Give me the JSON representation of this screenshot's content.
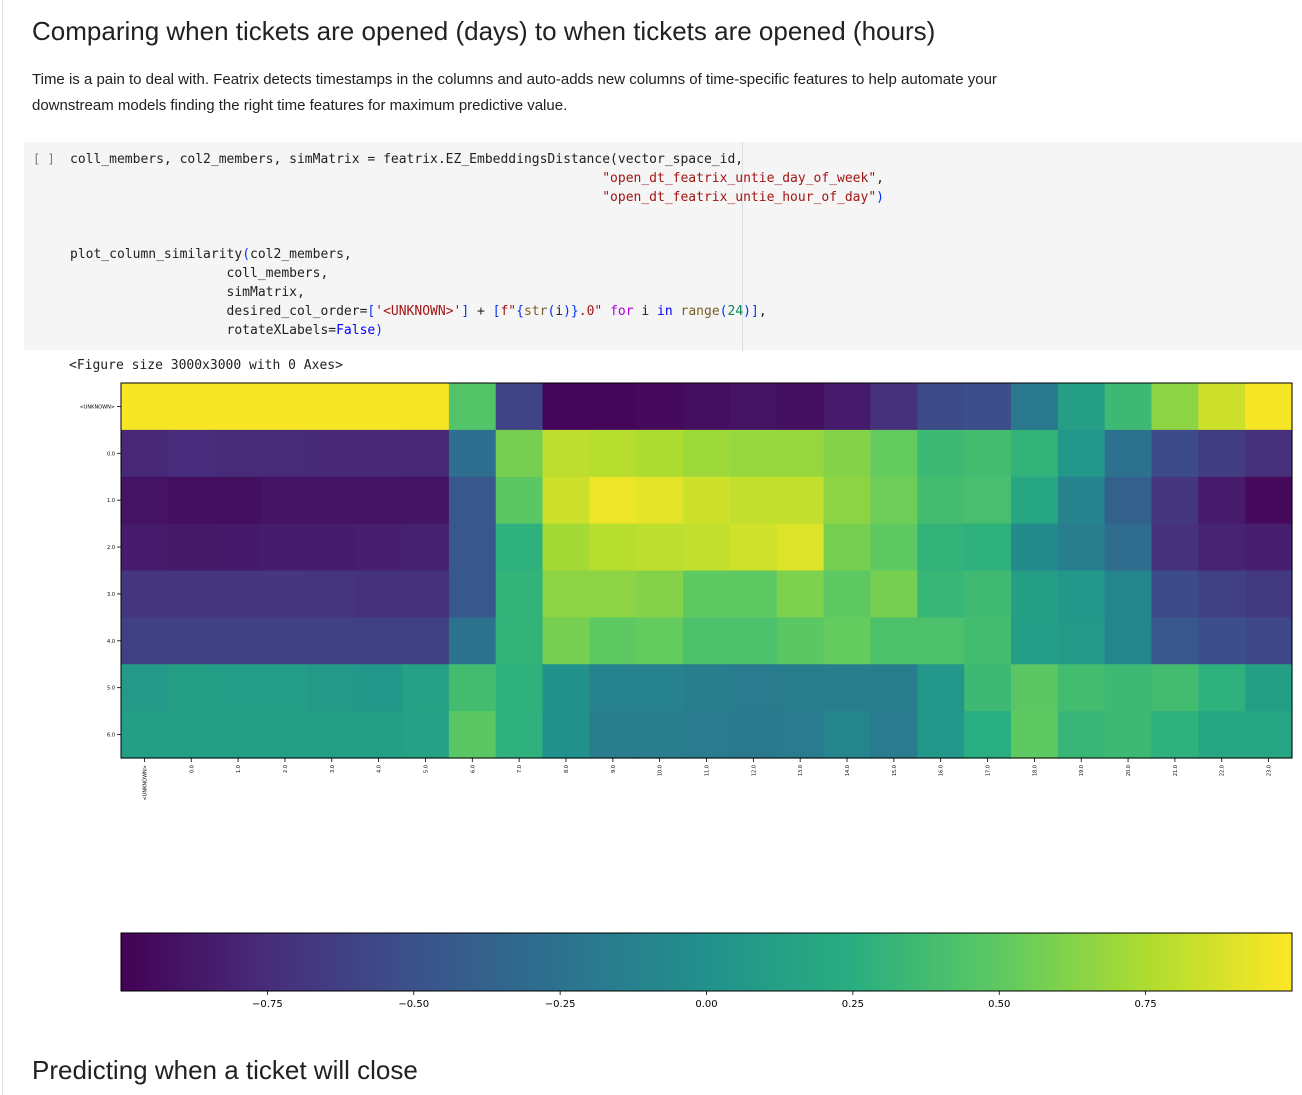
{
  "section1": {
    "title": "Comparing when tickets are opened (days) to when tickets are opened (hours)",
    "description": "Time is a pain to deal with. Featrix detects timestamps in the columns and auto-adds new columns of time-specific features to help automate your downstream models finding the right time features for maximum predictive value."
  },
  "cell": {
    "run_label": "[ ]",
    "output_text": "<Figure size 3000x3000 with 0 Axes>"
  },
  "chart_data": {
    "type": "heatmap",
    "colormap": "viridis",
    "x_categories": [
      "<UNKNOWN>",
      "0.0",
      "1.0",
      "2.0",
      "3.0",
      "4.0",
      "5.0",
      "6.0",
      "7.0",
      "8.0",
      "9.0",
      "10.0",
      "11.0",
      "12.0",
      "13.0",
      "14.0",
      "15.0",
      "16.0",
      "17.0",
      "18.0",
      "19.0",
      "20.0",
      "21.0",
      "22.0",
      "23.0"
    ],
    "y_categories": [
      "<UNKNOWN>",
      "0.0",
      "1.0",
      "2.0",
      "3.0",
      "4.0",
      "5.0",
      "6.0"
    ],
    "values": [
      [
        0.98,
        0.98,
        0.98,
        0.98,
        0.98,
        0.98,
        0.98,
        0.45,
        -0.6,
        -0.97,
        -0.97,
        -0.95,
        -0.92,
        -0.9,
        -0.92,
        -0.85,
        -0.72,
        -0.55,
        -0.52,
        -0.2,
        0.12,
        0.35,
        0.65,
        0.85,
        0.98
      ],
      [
        -0.78,
        -0.75,
        -0.76,
        -0.76,
        -0.77,
        -0.77,
        -0.78,
        -0.28,
        0.58,
        0.8,
        0.78,
        0.75,
        0.7,
        0.68,
        0.68,
        0.62,
        0.52,
        0.35,
        0.38,
        0.3,
        0.05,
        -0.25,
        -0.55,
        -0.65,
        -0.72
      ],
      [
        -0.9,
        -0.92,
        -0.92,
        -0.9,
        -0.9,
        -0.9,
        -0.9,
        -0.45,
        0.48,
        0.85,
        0.95,
        0.92,
        0.85,
        0.82,
        0.82,
        0.65,
        0.55,
        0.38,
        0.4,
        0.2,
        -0.12,
        -0.38,
        -0.68,
        -0.85,
        -0.95
      ],
      [
        -0.85,
        -0.87,
        -0.86,
        -0.84,
        -0.84,
        -0.83,
        -0.82,
        -0.45,
        0.28,
        0.72,
        0.78,
        0.8,
        0.82,
        0.86,
        0.9,
        0.58,
        0.5,
        0.3,
        0.28,
        -0.05,
        -0.15,
        -0.3,
        -0.72,
        -0.8,
        -0.83
      ],
      [
        -0.7,
        -0.7,
        -0.7,
        -0.68,
        -0.7,
        -0.72,
        -0.72,
        -0.45,
        0.3,
        0.65,
        0.65,
        0.62,
        0.5,
        0.5,
        0.6,
        0.5,
        0.58,
        0.32,
        0.36,
        0.12,
        0.05,
        -0.1,
        -0.55,
        -0.62,
        -0.67
      ],
      [
        -0.62,
        -0.62,
        -0.62,
        -0.62,
        -0.62,
        -0.62,
        -0.62,
        -0.25,
        0.3,
        0.58,
        0.5,
        0.52,
        0.42,
        0.42,
        0.48,
        0.52,
        0.42,
        0.42,
        0.38,
        0.1,
        0.08,
        -0.1,
        -0.45,
        -0.52,
        -0.57
      ],
      [
        0.08,
        0.12,
        0.1,
        0.1,
        0.08,
        0.05,
        0.15,
        0.38,
        0.28,
        0.02,
        -0.12,
        -0.12,
        -0.15,
        -0.18,
        -0.16,
        -0.16,
        -0.16,
        0.05,
        0.35,
        0.48,
        0.38,
        0.35,
        0.38,
        0.28,
        0.12
      ],
      [
        0.12,
        0.12,
        0.12,
        0.12,
        0.12,
        0.12,
        0.15,
        0.48,
        0.28,
        0.0,
        -0.15,
        -0.15,
        -0.18,
        -0.2,
        -0.18,
        -0.1,
        -0.18,
        0.05,
        0.25,
        0.5,
        0.32,
        0.35,
        0.28,
        0.18,
        0.18
      ]
    ],
    "colorbar": {
      "range": [
        -1.0,
        1.0
      ],
      "ticks": [
        -0.75,
        -0.5,
        -0.25,
        0.0,
        0.25,
        0.5,
        0.75
      ],
      "tick_labels": [
        "−0.75",
        "−0.50",
        "−0.25",
        "0.00",
        "0.25",
        "0.50",
        "0.75"
      ]
    }
  },
  "section2": {
    "title": "Predicting when a ticket will close"
  }
}
